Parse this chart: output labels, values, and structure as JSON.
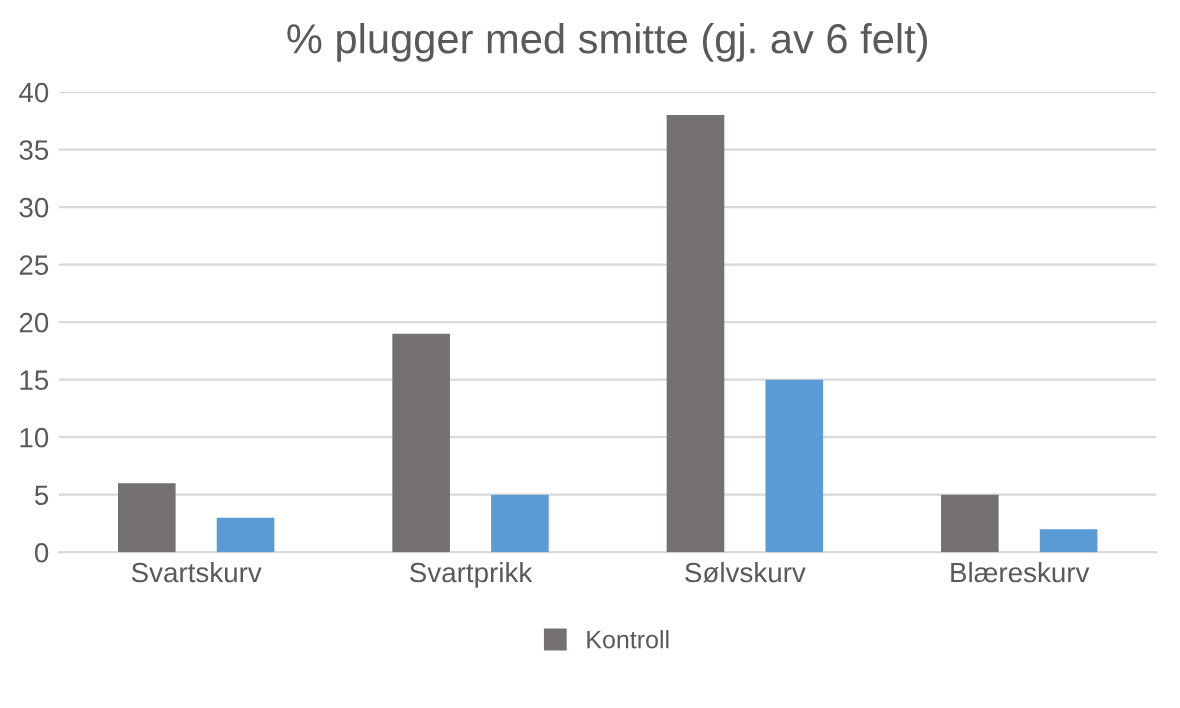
{
  "chart_data": {
    "type": "bar",
    "title": "% plugger med smitte (gj. av 6 felt)",
    "categories": [
      "Svartskurv",
      "Svartprikk",
      "Sølvskurv",
      "Blæreskurv"
    ],
    "series": [
      {
        "name": "Kontroll",
        "color": "#767171",
        "values": [
          6,
          19,
          38,
          5
        ]
      },
      {
        "color": "#5b9bd5",
        "values": [
          3,
          5,
          15,
          2
        ]
      }
    ],
    "ylim": [
      0,
      40
    ],
    "yticks": [
      0,
      5,
      10,
      15,
      20,
      25,
      30,
      35,
      40
    ],
    "grid": "y",
    "legend": "bottom"
  }
}
